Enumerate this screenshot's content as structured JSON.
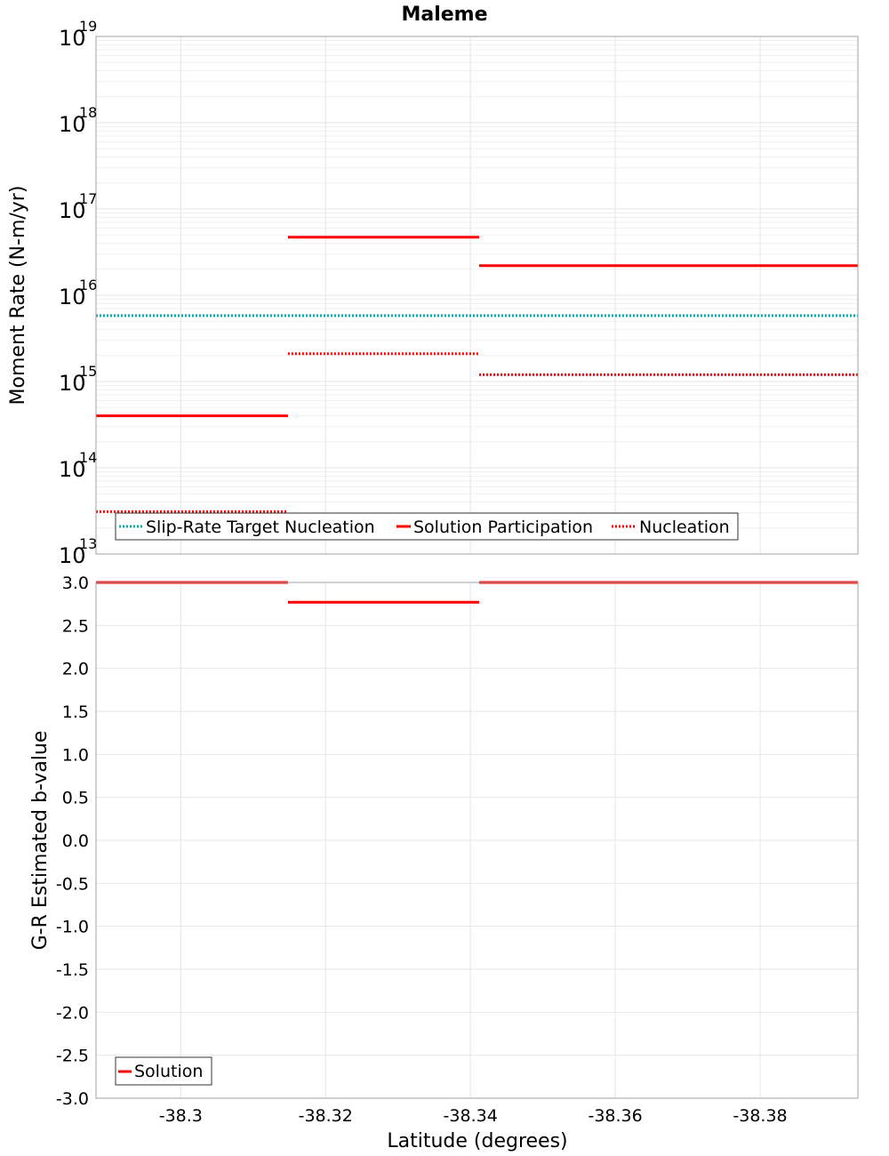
{
  "title": "Maleme",
  "xlabel": "Latitude (degrees)",
  "x_ticks": [
    "-38.3",
    "-38.32",
    "-38.34",
    "-38.36",
    "-38.38"
  ],
  "colors": {
    "target": "#00b0b0",
    "solution": "#ff0000",
    "grid": "#e6e6e6",
    "frame": "#a0a0a0"
  },
  "chart_data": [
    {
      "type": "line",
      "title": "Maleme",
      "ylabel": "Moment Rate (N-m/yr)",
      "yscale": "log",
      "ylim": [
        10000000000000.0,
        1e+19
      ],
      "xlim": [
        -38.2883,
        -38.3935
      ],
      "y_ticks": [
        {
          "base": "10",
          "exp": "19"
        },
        {
          "base": "10",
          "exp": "18"
        },
        {
          "base": "10",
          "exp": "17"
        },
        {
          "base": "10",
          "exp": "16"
        },
        {
          "base": "10",
          "exp": "15"
        },
        {
          "base": "10",
          "exp": "14"
        },
        {
          "base": "10",
          "exp": "13"
        }
      ],
      "legend": {
        "position": "bottom-left",
        "entries": [
          "Slip-Rate Target Nucleation",
          "Solution Participation",
          "Nucleation"
        ]
      },
      "series": [
        {
          "name": "Slip-Rate Target Nucleation",
          "style": "dotted",
          "segments": [
            [
              -38.2883,
              -38.3935,
              5800000000000000.0
            ]
          ]
        },
        {
          "name": "Solution Participation",
          "style": "solid",
          "segments": [
            [
              -38.2883,
              -38.3148,
              400000000000000.0
            ],
            [
              -38.3148,
              -38.3412,
              4.7e+16
            ],
            [
              -38.3412,
              -38.3935,
              2.2e+16
            ]
          ]
        },
        {
          "name": "Nucleation",
          "style": "dotted",
          "segments": [
            [
              -38.2883,
              -38.3148,
              31000000000000.0
            ],
            [
              -38.3148,
              -38.3412,
              2100000000000000.0
            ],
            [
              -38.3412,
              -38.3935,
              1200000000000000.0
            ]
          ]
        }
      ]
    },
    {
      "type": "line",
      "ylabel": "G-R Estimated b-value",
      "ylim": [
        -3.0,
        3.0
      ],
      "xlim": [
        -38.2883,
        -38.3935
      ],
      "y_ticks": [
        "3.0",
        "2.5",
        "2.0",
        "1.5",
        "1.0",
        "0.5",
        "0.0",
        "-0.5",
        "-1.0",
        "-1.5",
        "-2.0",
        "-2.5",
        "-3.0"
      ],
      "legend": {
        "position": "bottom-left",
        "entries": [
          "Solution"
        ]
      },
      "series": [
        {
          "name": "Solution",
          "style": "solid",
          "segments": [
            [
              -38.2883,
              -38.3148,
              3.0
            ],
            [
              -38.3148,
              -38.3412,
              2.77
            ],
            [
              -38.3412,
              -38.3935,
              3.0
            ]
          ]
        }
      ]
    }
  ]
}
